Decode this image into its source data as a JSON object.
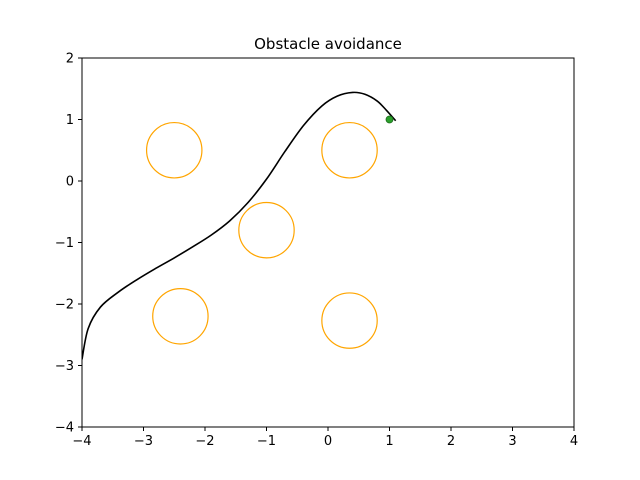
{
  "chart_data": {
    "type": "line",
    "title": "Obstacle avoidance",
    "xlabel": "",
    "ylabel": "",
    "xlim": [
      -4,
      4
    ],
    "ylim": [
      -4,
      2
    ],
    "x_ticks": [
      -4,
      -3,
      -2,
      -1,
      0,
      1,
      2,
      3,
      4
    ],
    "y_ticks": [
      -4,
      -3,
      -2,
      -1,
      0,
      1,
      2
    ],
    "x_tick_labels": [
      "−4",
      "−3",
      "−2",
      "−1",
      "0",
      "1",
      "2",
      "3",
      "4"
    ],
    "y_tick_labels": [
      "−4",
      "−3",
      "−2",
      "−1",
      "0",
      "1",
      "2"
    ],
    "grid": false,
    "path": {
      "color": "#000000",
      "points": [
        [
          -4.0,
          -2.9
        ],
        [
          -3.9,
          -2.4
        ],
        [
          -3.7,
          -2.05
        ],
        [
          -3.4,
          -1.8
        ],
        [
          -3.1,
          -1.6
        ],
        [
          -2.8,
          -1.42
        ],
        [
          -2.5,
          -1.25
        ],
        [
          -2.2,
          -1.07
        ],
        [
          -1.9,
          -0.88
        ],
        [
          -1.6,
          -0.65
        ],
        [
          -1.3,
          -0.35
        ],
        [
          -1.0,
          0.03
        ],
        [
          -0.7,
          0.48
        ],
        [
          -0.4,
          0.9
        ],
        [
          -0.1,
          1.22
        ],
        [
          0.15,
          1.38
        ],
        [
          0.4,
          1.44
        ],
        [
          0.6,
          1.41
        ],
        [
          0.8,
          1.3
        ],
        [
          0.95,
          1.15
        ],
        [
          1.1,
          0.98
        ]
      ]
    },
    "obstacles": {
      "color": "#ffa500",
      "radius": 0.45,
      "centers": [
        [
          -2.5,
          0.5
        ],
        [
          0.35,
          0.5
        ],
        [
          -1.0,
          -0.8
        ],
        [
          -2.4,
          -2.2
        ],
        [
          0.35,
          -2.27
        ]
      ]
    },
    "goal": {
      "point": [
        1.0,
        1.0
      ],
      "color": "#2ca02c"
    }
  }
}
